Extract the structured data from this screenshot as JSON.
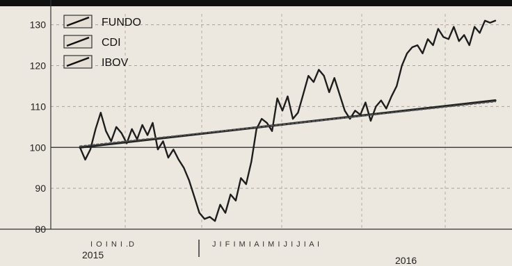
{
  "chart_data": {
    "type": "line",
    "title": "",
    "xlabel": "",
    "ylabel": "",
    "ylim": [
      80,
      133
    ],
    "yticks": [
      80,
      90,
      100,
      110,
      120,
      130
    ],
    "ytick_labels": [
      "80",
      "90",
      "100",
      "110",
      "120",
      "130"
    ],
    "reference_line": 100,
    "grid": "dashed horizontal and vertical",
    "legend_position": "top-left",
    "legend": [
      "FUNDO",
      "CDI",
      "IBOV"
    ],
    "month_labels": [
      "S",
      "O",
      "N",
      "D",
      "J",
      "F",
      "M",
      "A",
      "M",
      "J",
      "J",
      "A"
    ],
    "x_axis_month_text": [
      "I  O  I  N  I .D",
      "J  I  F  I  M  I  A  I  M  I  J  I  J  I  A  I"
    ],
    "year_labels": [
      "2015",
      "2016"
    ],
    "x_range": [
      0,
      12
    ],
    "series": [
      {
        "name": "FUNDO",
        "x": [
          0.0,
          0.15,
          0.3,
          0.45,
          0.6,
          0.75,
          0.9,
          1.05,
          1.2,
          1.35,
          1.5,
          1.65,
          1.8,
          1.95,
          2.1,
          2.25,
          2.4,
          2.55,
          2.7,
          2.85,
          3.0,
          3.15,
          3.3,
          3.45,
          3.6,
          3.75,
          3.9,
          4.05,
          4.2,
          4.35,
          4.5,
          4.65,
          4.8,
          4.95,
          5.1,
          5.25,
          5.4,
          5.55,
          5.7,
          5.85,
          6.0,
          6.15,
          6.3,
          6.45,
          6.6,
          6.75,
          6.9,
          7.05,
          7.2,
          7.35,
          7.5,
          7.65,
          7.8,
          7.95,
          8.1,
          8.25,
          8.4,
          8.55,
          8.7,
          8.85,
          9.0,
          9.15,
          9.3,
          9.45,
          9.6,
          9.75,
          9.9,
          10.05,
          10.2,
          10.35,
          10.5,
          10.65,
          10.8,
          10.95,
          11.1,
          11.25,
          11.4,
          11.55,
          11.7,
          11.85,
          12.0
        ],
        "values": [
          100.0,
          97.0,
          99.5,
          104.5,
          108.5,
          104.0,
          101.5,
          105.0,
          103.5,
          101.0,
          104.5,
          102.0,
          105.5,
          103.0,
          106.0,
          99.5,
          101.5,
          97.5,
          99.5,
          97.0,
          95.0,
          92.0,
          88.0,
          84.0,
          82.5,
          83.0,
          82.0,
          86.0,
          84.0,
          88.5,
          87.0,
          92.5,
          91.0,
          96.5,
          104.5,
          107.0,
          106.0,
          104.0,
          112.0,
          109.0,
          112.5,
          107.0,
          108.5,
          113.0,
          117.5,
          116.0,
          119.0,
          117.5,
          113.5,
          117.0,
          113.0,
          109.0,
          107.0,
          109.0,
          108.0,
          111.0,
          106.5,
          110.0,
          111.5,
          109.5,
          112.5,
          115.0,
          120.0,
          123.0,
          124.5,
          125.0,
          123.0,
          126.5,
          125.0,
          129.0,
          127.0,
          126.5,
          129.5,
          126.0,
          127.5,
          125.0,
          129.5,
          128.0,
          131.0,
          130.5,
          131.0
        ]
      },
      {
        "name": "CDI",
        "x": [
          0,
          12
        ],
        "values": [
          100.0,
          111.5
        ]
      },
      {
        "name": "IBOV",
        "x": [
          0,
          12
        ],
        "values": [
          100.3,
          111.2
        ]
      }
    ]
  }
}
